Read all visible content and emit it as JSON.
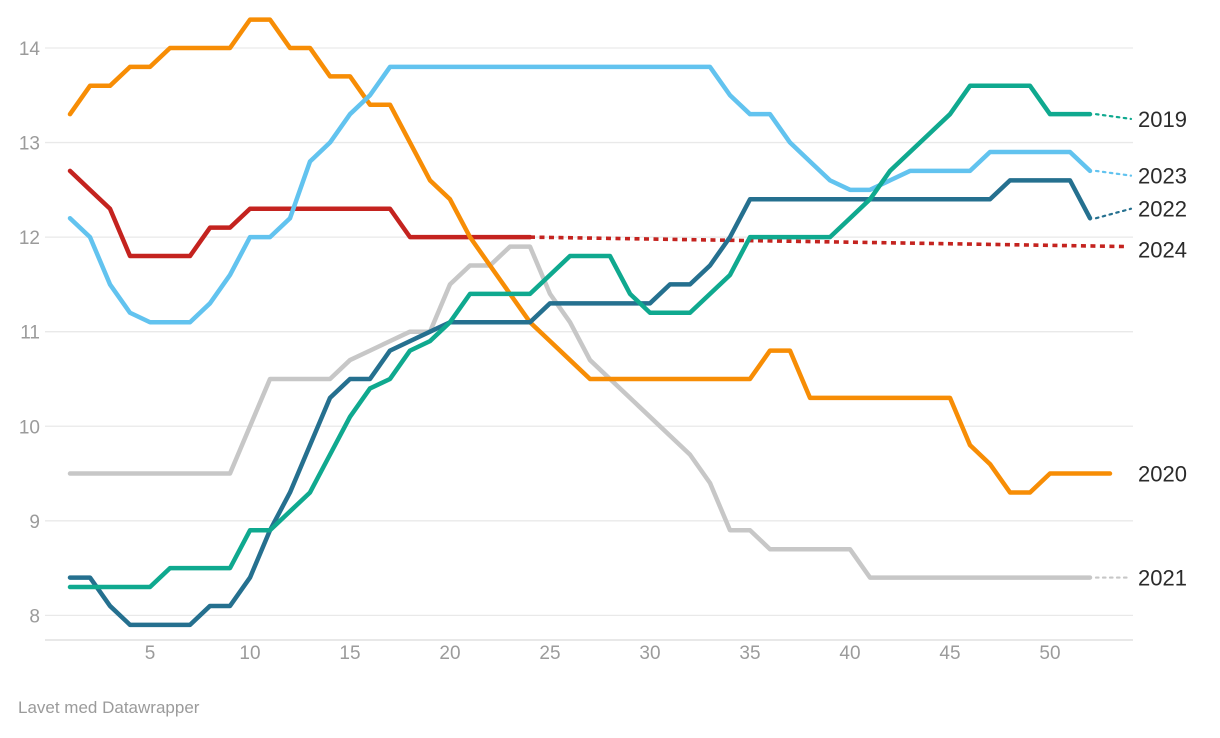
{
  "chart": {
    "footer": "Lavet med Datawrapper",
    "y_axis": {
      "min": 8,
      "max": 14.3,
      "tick_labels": [
        "8",
        "9",
        "10",
        "11",
        "12",
        "13",
        "14"
      ],
      "tick_values": [
        8,
        9,
        10,
        11,
        12,
        13,
        14
      ],
      "grid": true
    },
    "x_axis": {
      "unit": "week",
      "tick_labels": [
        "5",
        "10",
        "15",
        "20",
        "25",
        "30",
        "35",
        "40",
        "45",
        "50"
      ],
      "tick_values": [
        5,
        10,
        15,
        20,
        25,
        30,
        35,
        40,
        45,
        50
      ]
    },
    "colors": {
      "grid": "#e9e9e9",
      "axis_line": "#d9d9d9",
      "tick_text": "#9b9b9b",
      "label_text": "#2b2b2b",
      "series_2019": "#0fa98f",
      "series_2020": "#f78d05",
      "series_2021": "#c7c7c7",
      "series_2022": "#25708f",
      "series_2023": "#62c3ef",
      "series_2024": "#c4231f"
    }
  },
  "chart_data": {
    "type": "line",
    "x_unit": "week",
    "xlabel": "",
    "ylabel": "",
    "ylim": [
      8,
      14.3
    ],
    "xlim": [
      1,
      53
    ],
    "legend_position": "right-edge-labels",
    "z_order": [
      "2021",
      "2024",
      "2020",
      "2023",
      "2022",
      "2019"
    ],
    "series": [
      {
        "name": "2021",
        "color": "#c7c7c7",
        "label_value": 8.4,
        "has_connector": true,
        "values": [
          9.5,
          9.5,
          9.5,
          9.5,
          9.5,
          9.5,
          9.5,
          9.5,
          9.5,
          10.0,
          10.5,
          10.5,
          10.5,
          10.5,
          10.7,
          10.8,
          10.9,
          11.0,
          11.0,
          11.5,
          11.7,
          11.7,
          11.9,
          11.9,
          11.4,
          11.1,
          10.7,
          10.5,
          10.3,
          10.1,
          9.9,
          9.7,
          9.4,
          8.9,
          8.9,
          8.7,
          8.7,
          8.7,
          8.7,
          8.7,
          8.4,
          8.4,
          8.4,
          8.4,
          8.4,
          8.4,
          8.4,
          8.4,
          8.4,
          8.4,
          8.4,
          8.4
        ]
      },
      {
        "name": "2024",
        "color": "#c4231f",
        "label_value": 11.87,
        "has_connector": false,
        "values": [
          12.7,
          12.5,
          12.3,
          11.8,
          11.8,
          11.8,
          11.8,
          12.1,
          12.1,
          12.3,
          12.3,
          12.3,
          12.3,
          12.3,
          12.3,
          12.3,
          12.3,
          12.0,
          12.0,
          12.0,
          12.0,
          12.0,
          12.0,
          12.0
        ],
        "projection": {
          "style": "dashed",
          "from": {
            "week": 24,
            "value": 12.0
          },
          "to": {
            "week": 53.9,
            "value": 11.9
          }
        }
      },
      {
        "name": "2020",
        "color": "#f78d05",
        "label_value": 9.5,
        "has_connector": false,
        "values": [
          13.3,
          13.6,
          13.6,
          13.8,
          13.8,
          14.0,
          14.0,
          14.0,
          14.0,
          14.3,
          14.3,
          14.0,
          14.0,
          13.7,
          13.7,
          13.4,
          13.4,
          13.0,
          12.6,
          12.4,
          12.0,
          11.7,
          11.4,
          11.1,
          10.9,
          10.7,
          10.5,
          10.5,
          10.5,
          10.5,
          10.5,
          10.5,
          10.5,
          10.5,
          10.5,
          10.8,
          10.8,
          10.3,
          10.3,
          10.3,
          10.3,
          10.3,
          10.3,
          10.3,
          10.3,
          9.8,
          9.6,
          9.3,
          9.3,
          9.5,
          9.5,
          9.5,
          9.5
        ]
      },
      {
        "name": "2023",
        "color": "#62c3ef",
        "label_value": 12.65,
        "has_connector": true,
        "values": [
          12.2,
          12.0,
          11.5,
          11.2,
          11.1,
          11.1,
          11.1,
          11.3,
          11.6,
          12.0,
          12.0,
          12.2,
          12.8,
          13.0,
          13.3,
          13.5,
          13.8,
          13.8,
          13.8,
          13.8,
          13.8,
          13.8,
          13.8,
          13.8,
          13.8,
          13.8,
          13.8,
          13.8,
          13.8,
          13.8,
          13.8,
          13.8,
          13.8,
          13.5,
          13.3,
          13.3,
          13.0,
          12.8,
          12.6,
          12.5,
          12.5,
          12.6,
          12.7,
          12.7,
          12.7,
          12.7,
          12.9,
          12.9,
          12.9,
          12.9,
          12.9,
          12.7
        ]
      },
      {
        "name": "2022",
        "color": "#25708f",
        "label_value": 12.3,
        "has_connector": true,
        "values": [
          8.4,
          8.4,
          8.1,
          7.9,
          7.9,
          7.9,
          7.9,
          8.1,
          8.1,
          8.4,
          8.9,
          9.3,
          9.8,
          10.3,
          10.5,
          10.5,
          10.8,
          10.9,
          11.0,
          11.1,
          11.1,
          11.1,
          11.1,
          11.1,
          11.3,
          11.3,
          11.3,
          11.3,
          11.3,
          11.3,
          11.5,
          11.5,
          11.7,
          12.0,
          12.4,
          12.4,
          12.4,
          12.4,
          12.4,
          12.4,
          12.4,
          12.4,
          12.4,
          12.4,
          12.4,
          12.4,
          12.4,
          12.6,
          12.6,
          12.6,
          12.6,
          12.2
        ]
      },
      {
        "name": "2019",
        "color": "#0fa98f",
        "label_value": 13.25,
        "has_connector": true,
        "values": [
          8.3,
          8.3,
          8.3,
          8.3,
          8.3,
          8.5,
          8.5,
          8.5,
          8.5,
          8.9,
          8.9,
          9.1,
          9.3,
          9.7,
          10.1,
          10.4,
          10.5,
          10.8,
          10.9,
          11.1,
          11.4,
          11.4,
          11.4,
          11.4,
          11.6,
          11.8,
          11.8,
          11.8,
          11.4,
          11.2,
          11.2,
          11.2,
          11.4,
          11.6,
          12.0,
          12.0,
          12.0,
          12.0,
          12.0,
          12.2,
          12.4,
          12.7,
          12.9,
          13.1,
          13.3,
          13.6,
          13.6,
          13.6,
          13.6,
          13.3,
          13.3,
          13.3
        ]
      }
    ]
  }
}
